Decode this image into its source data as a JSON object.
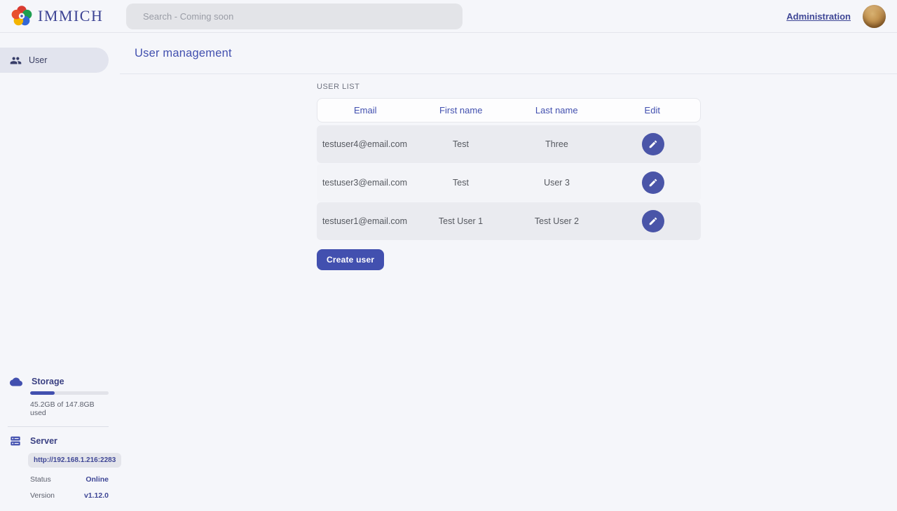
{
  "colors": {
    "primary": "#4250af",
    "row_odd_bg": "#eaebf0",
    "row_even_bg": "#f3f4f8",
    "status_online": "#3f4796"
  },
  "navbar": {
    "logo_text": "IMMICH",
    "search_placeholder": "Search - Coming soon",
    "admin_link": "Administration"
  },
  "sidebar": {
    "user_item_label": "User",
    "storage": {
      "title": "Storage",
      "usage_text": "45.2GB of 147.8GB used",
      "used_percent": 31
    },
    "server": {
      "title": "Server",
      "url": "http://192.168.1.216:2283",
      "status_label": "Status",
      "status_value": "Online",
      "version_label": "Version",
      "version_value": "v1.12.0"
    }
  },
  "main": {
    "title": "User management",
    "section_label": "USER LIST",
    "table": {
      "headers": [
        "Email",
        "First name",
        "Last name",
        "Edit"
      ],
      "rows": [
        {
          "email": "testuser4@email.com",
          "first_name": "Test",
          "last_name": "Three"
        },
        {
          "email": "testuser3@email.com",
          "first_name": "Test",
          "last_name": "User 3"
        },
        {
          "email": "testuser1@email.com",
          "first_name": "Test User 1",
          "last_name": "Test User 2"
        }
      ]
    },
    "create_button_label": "Create user"
  }
}
